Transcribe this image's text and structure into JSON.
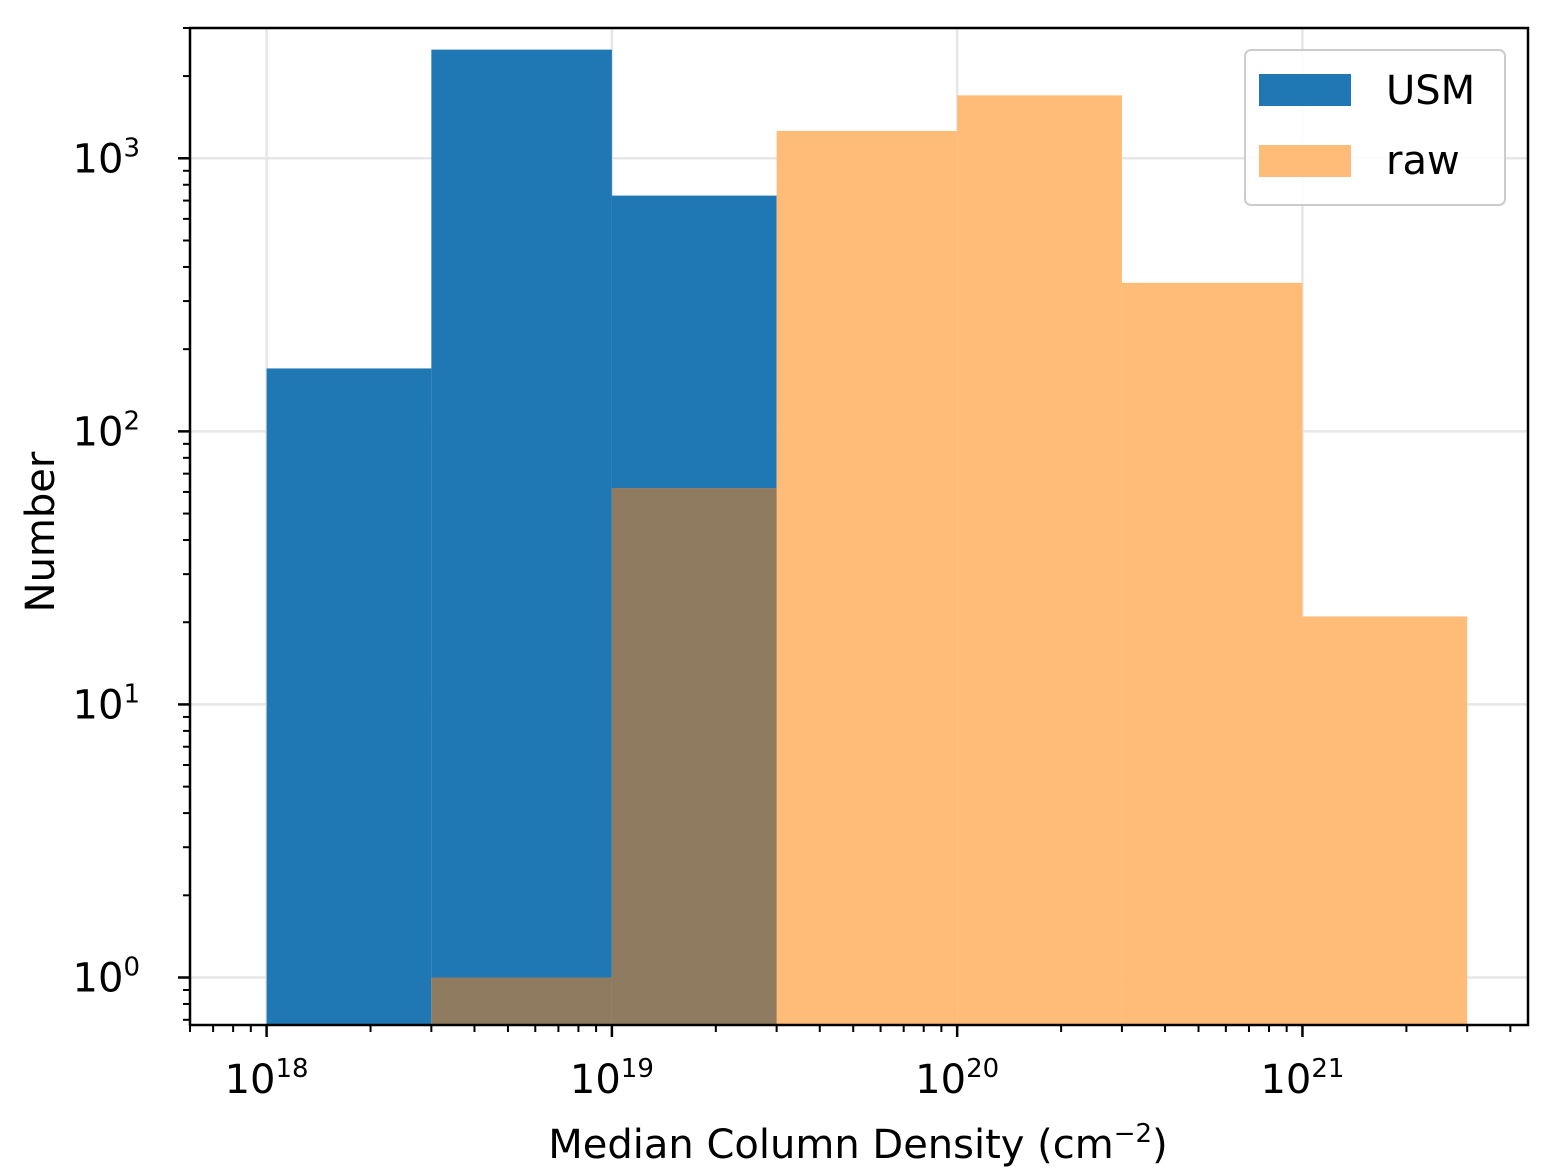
{
  "chart_data": {
    "type": "bar",
    "histogram": true,
    "x_scale": "log",
    "y_scale": "log",
    "bin_edges": [
      1e+18,
      3e+18,
      1e+19,
      3e+19,
      1e+20,
      3e+20,
      1e+21,
      3e+21
    ],
    "series": [
      {
        "name": "USM",
        "color": "#1f77b4",
        "opacity": 1.0,
        "values": [
          170,
          2500,
          730,
          0,
          0,
          0,
          0
        ]
      },
      {
        "name": "raw",
        "color": "#ffbb78",
        "opacity": 0.85,
        "values": [
          0,
          1,
          62,
          1260,
          1700,
          350,
          21
        ]
      }
    ],
    "overlap_color": "#8f7c60",
    "xlabel": "Median Column Density (cm",
    "xlabel_sup": "−2",
    "xlabel_close": ")",
    "ylabel": "Number",
    "xlim": [
      6e+17,
      4.5e+21
    ],
    "ylim": [
      0.67,
      3000
    ],
    "x_ticks": [
      {
        "base": "10",
        "exp": "18",
        "value": 1e+18
      },
      {
        "base": "10",
        "exp": "19",
        "value": 1e+19
      },
      {
        "base": "10",
        "exp": "20",
        "value": 1e+20
      },
      {
        "base": "10",
        "exp": "21",
        "value": 1e+21
      }
    ],
    "y_ticks": [
      {
        "base": "10",
        "exp": "0",
        "value": 1
      },
      {
        "base": "10",
        "exp": "1",
        "value": 10
      },
      {
        "base": "10",
        "exp": "2",
        "value": 100
      },
      {
        "base": "10",
        "exp": "3",
        "value": 1000
      }
    ],
    "grid": true,
    "legend_position": "top-right"
  }
}
